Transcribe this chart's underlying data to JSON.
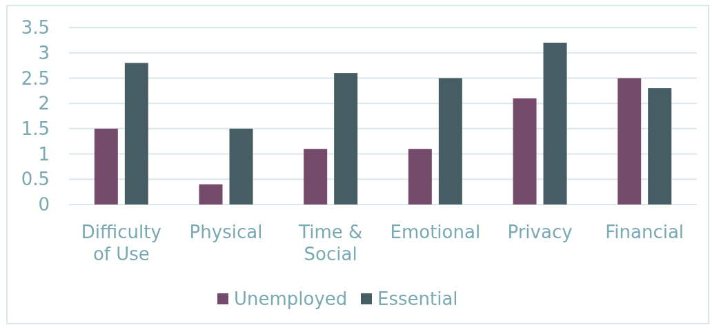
{
  "chart_data": {
    "type": "bar",
    "categories": [
      "Difficulty of Use",
      "Physical",
      "Time & Social",
      "Emotional",
      "Privacy",
      "Financial"
    ],
    "series": [
      {
        "name": "Unemployed",
        "color": "#744b6b",
        "values": [
          1.5,
          0.4,
          1.1,
          1.1,
          2.1,
          2.5
        ]
      },
      {
        "name": "Essential",
        "color": "#455d63",
        "values": [
          2.8,
          1.5,
          2.6,
          2.5,
          3.2,
          2.3
        ]
      }
    ],
    "ylim": [
      0,
      3.5
    ],
    "yticks": [
      0,
      0.5,
      1,
      1.5,
      2,
      2.5,
      3,
      3.5
    ],
    "grid": "y",
    "legend": "bottom"
  }
}
